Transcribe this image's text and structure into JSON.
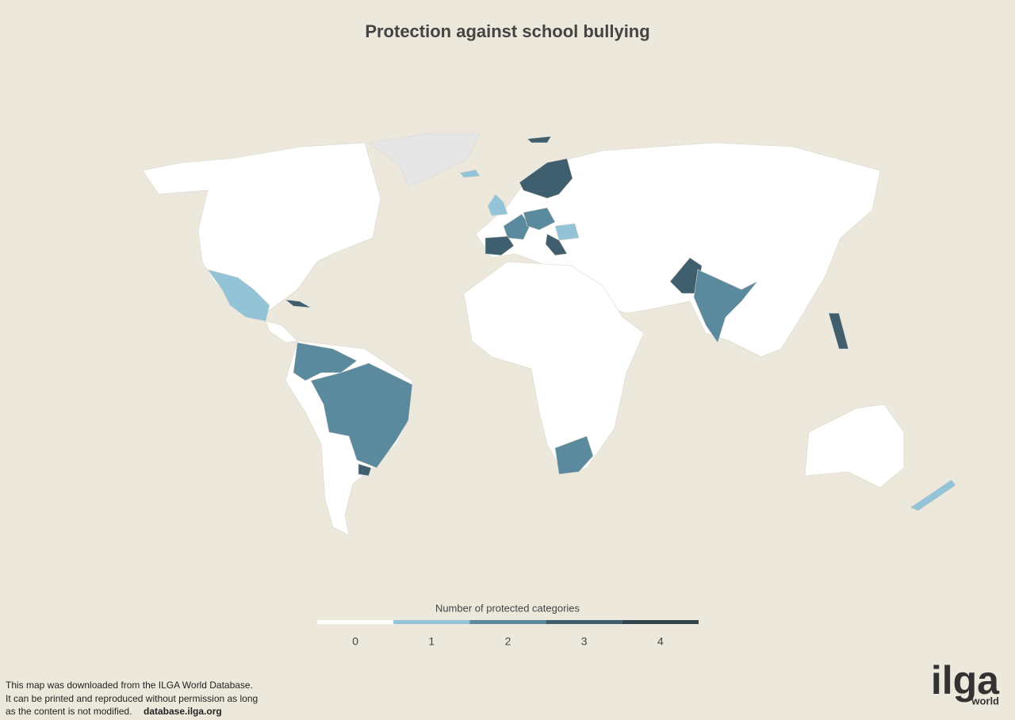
{
  "title": "Protection against school bullying",
  "legend": {
    "title": "Number of protected categories",
    "items": [
      {
        "label": 0,
        "color": "#ffffff"
      },
      {
        "label": 1,
        "color": "#93c3d6"
      },
      {
        "label": 2,
        "color": "#5b8a9e"
      },
      {
        "label": 3,
        "color": "#3f5f6e"
      },
      {
        "label": 4,
        "color": "#2f4550"
      }
    ]
  },
  "footer": {
    "lines": [
      "This map was downloaded from the ILGA World Database.",
      "It can be printed and reproduced without permission as long",
      "as the content is not modified."
    ],
    "link": "database.ilga.org"
  },
  "logo": {
    "name": "ilga",
    "sub": "world"
  }
}
